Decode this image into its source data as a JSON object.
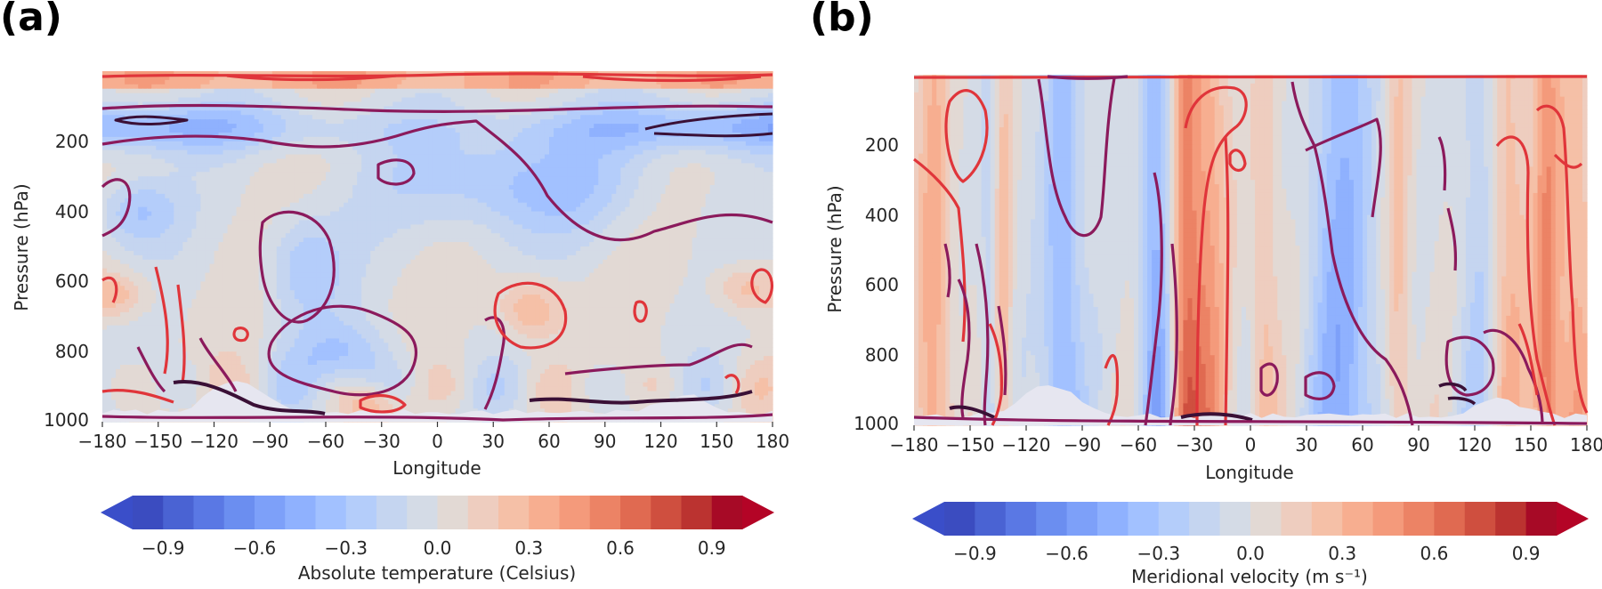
{
  "chart_data": [
    {
      "type": "heatmap",
      "panel_label": "(a)",
      "xlabel": "Longitude",
      "ylabel": "Pressure (hPa)",
      "xlim": [
        -180,
        180
      ],
      "ylim": [
        1000,
        0
      ],
      "xticks": [
        "−180",
        "−150",
        "−120",
        "−90",
        "−60",
        "−30",
        "0",
        "30",
        "60",
        "90",
        "120",
        "150",
        "180"
      ],
      "yticks": [
        "200",
        "400",
        "600",
        "800",
        "1000"
      ],
      "colorbar": {
        "label": "Absolute temperature (Celsius)",
        "range": [
          -1.0,
          1.0
        ],
        "ticks": [
          "−0.9",
          "−0.6",
          "−0.3",
          "0.0",
          "0.3",
          "0.6",
          "0.9"
        ],
        "levels": 20,
        "colormap": "coolwarm",
        "extend": "both"
      },
      "contour_lines": [
        "-0.2",
        "0.2",
        "-0.6"
      ]
    },
    {
      "type": "heatmap",
      "panel_label": "(b)",
      "xlabel": "Longitude",
      "ylabel": "Pressure (hPa)",
      "xlim": [
        -180,
        180
      ],
      "ylim": [
        1000,
        0
      ],
      "xticks": [
        "−180",
        "−150",
        "−120",
        "−90",
        "−60",
        "−30",
        "0",
        "30",
        "60",
        "90",
        "120",
        "150",
        "180"
      ],
      "yticks": [
        "200",
        "400",
        "600",
        "800",
        "1000"
      ],
      "colorbar": {
        "label": "Meridional velocity (m s⁻¹)",
        "range": [
          -1.0,
          1.0
        ],
        "ticks": [
          "−0.9",
          "−0.6",
          "−0.3",
          "0.0",
          "0.3",
          "0.6",
          "0.9"
        ],
        "levels": 20,
        "colormap": "coolwarm",
        "extend": "both"
      },
      "contour_lines": [
        "-0.2",
        "0.2",
        "-0.6"
      ]
    }
  ],
  "colors": {
    "colormap": [
      "#3b4cc0",
      "#4a63d3",
      "#5a78e4",
      "#6b8ef0",
      "#7da0f9",
      "#8fb1fe",
      "#a2c1ff",
      "#b4cdfa",
      "#c5d5f0",
      "#d4dbe6",
      "#e2d9d4",
      "#eecdbf",
      "#f5c0a7",
      "#f7ae90",
      "#f49a7b",
      "#ec8365",
      "#e06a51",
      "#cf4f3f",
      "#bb3330",
      "#a70a26"
    ],
    "contour_negative": "#8b1a5c",
    "contour_strong_negative": "#3a1036",
    "contour_positive": "#e0353a",
    "land_mask": "#e6e6f0"
  }
}
